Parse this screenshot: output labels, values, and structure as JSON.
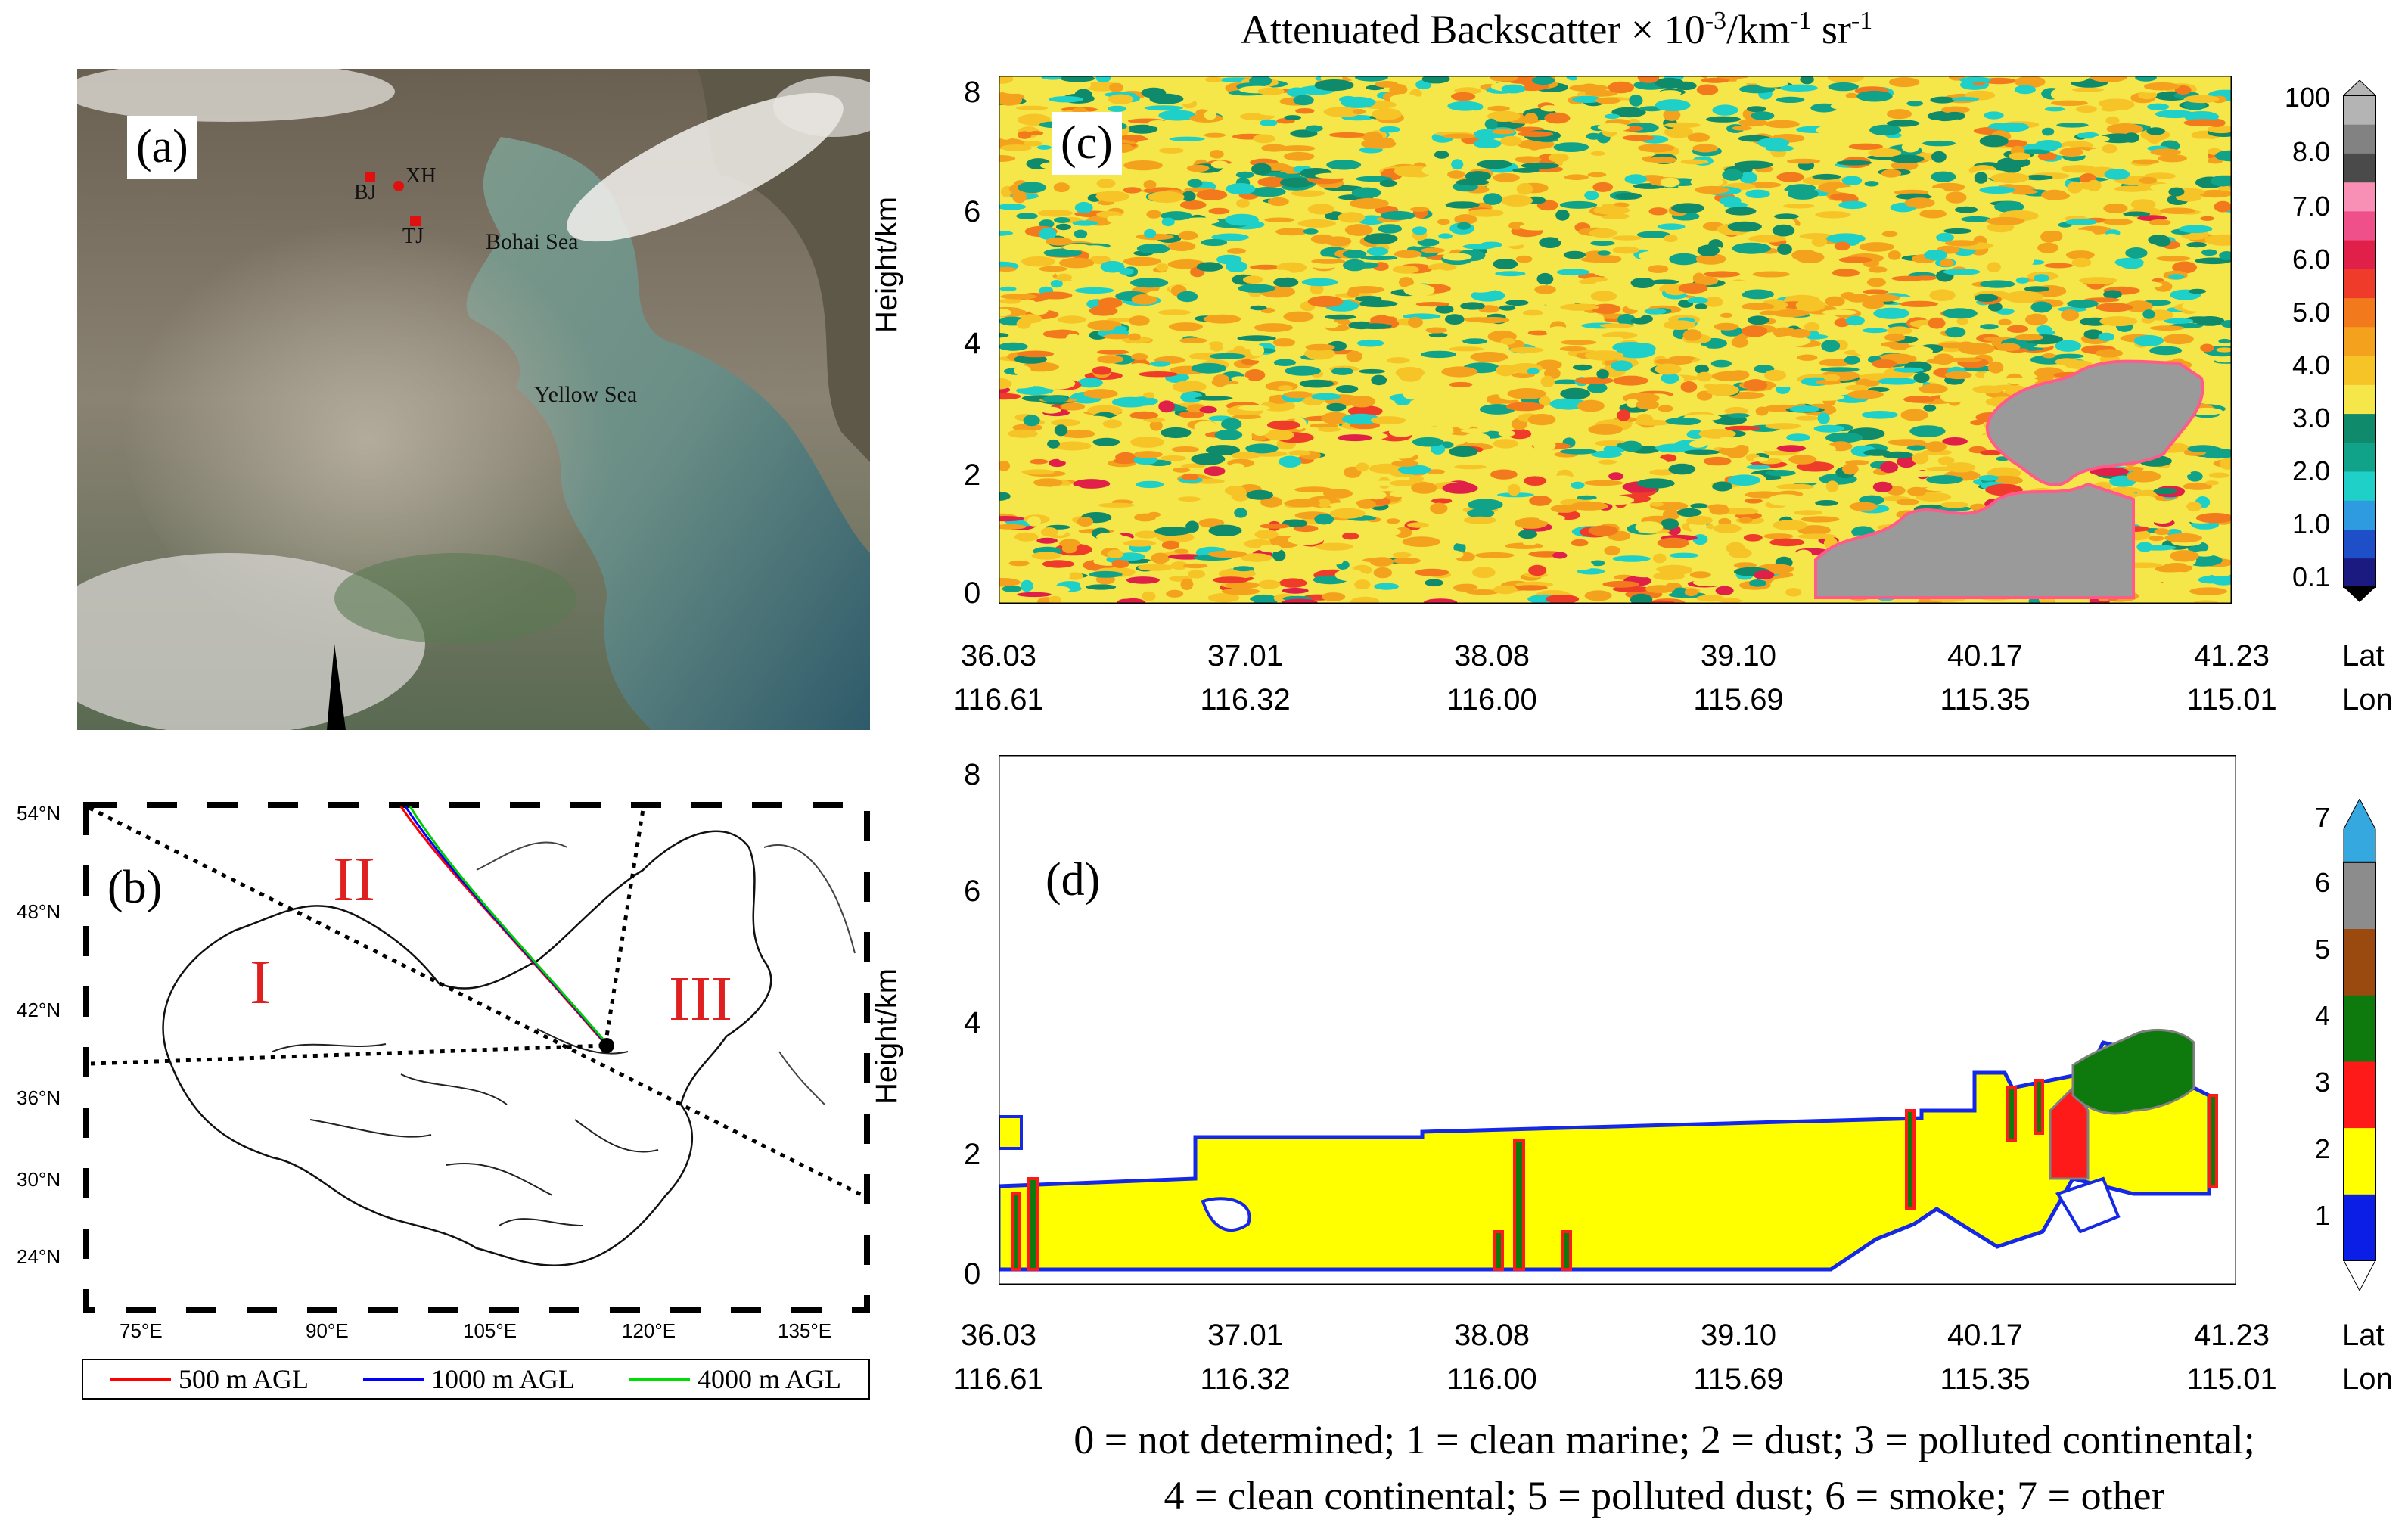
{
  "panel_a": {
    "label": "(a)",
    "places": {
      "bj": "BJ",
      "xh": "XH",
      "tj": "TJ",
      "bohai": "Bohai Sea",
      "yellow": "Yellow Sea"
    }
  },
  "panel_b": {
    "label": "(b)",
    "regions": [
      "I",
      "II",
      "III"
    ],
    "lat_ticks": [
      "54°N",
      "48°N",
      "42°N",
      "36°N",
      "30°N",
      "24°N"
    ],
    "lon_ticks": [
      "75°E",
      "90°E",
      "105°E",
      "120°E",
      "135°E"
    ],
    "legend": [
      {
        "label": "500 m AGL",
        "color": "#ff0000"
      },
      {
        "label": "1000 m AGL",
        "color": "#0000ff"
      },
      {
        "label": "4000 m AGL",
        "color": "#00dd00"
      }
    ]
  },
  "panel_c": {
    "label": "(c)",
    "title_main": "Attenuated Backscatter × 10",
    "title_exp1": "-3",
    "title_unit": "/km",
    "title_exp2": "-1",
    "title_sr": " sr",
    "title_exp3": "-1",
    "ylabel": "Height/km",
    "colorbar_ticks": [
      "100",
      "8.0",
      "7.0",
      "6.0",
      "5.0",
      "4.0",
      "3.0",
      "2.0",
      "1.0",
      "0.1"
    ]
  },
  "panel_d": {
    "label": "(d)",
    "ylabel": "Height/km",
    "colorbar_ticks": [
      "7",
      "6",
      "5",
      "4",
      "3",
      "2",
      "1"
    ],
    "legend_line1": "0 = not determined; 1 = clean marine; 2 = dust; 3 = polluted continental;",
    "legend_line2": "4 = clean continental; 5 = polluted dust; 6 = smoke; 7 = other"
  },
  "axes": {
    "y_ticks": [
      "8",
      "6",
      "4",
      "2",
      "0"
    ],
    "lat": [
      "36.03",
      "37.01",
      "38.08",
      "39.10",
      "40.17",
      "41.23"
    ],
    "lon": [
      "116.61",
      "116.32",
      "116.00",
      "115.69",
      "115.35",
      "115.01"
    ],
    "lat_label": "Lat",
    "lon_label": "Lon"
  },
  "colors": {
    "backscatter_scale": [
      "#1a1a80",
      "#1f4fc8",
      "#2e9be0",
      "#1fd0c8",
      "#11a38a",
      "#0f8a6a",
      "#f5e64a",
      "#f7c428",
      "#f4a21e",
      "#f27a1c",
      "#ef3b2a",
      "#e02048",
      "#f0508a",
      "#f88fb4",
      "#4a4a4a",
      "#828282",
      "#b4b4b4"
    ],
    "class_scale": [
      "#ffffff",
      "#0a1ee6",
      "#ffff00",
      "#ff1a1a",
      "#0e7a0e",
      "#9a4a0e",
      "#8c8c8c",
      "#35a8e0"
    ]
  }
}
